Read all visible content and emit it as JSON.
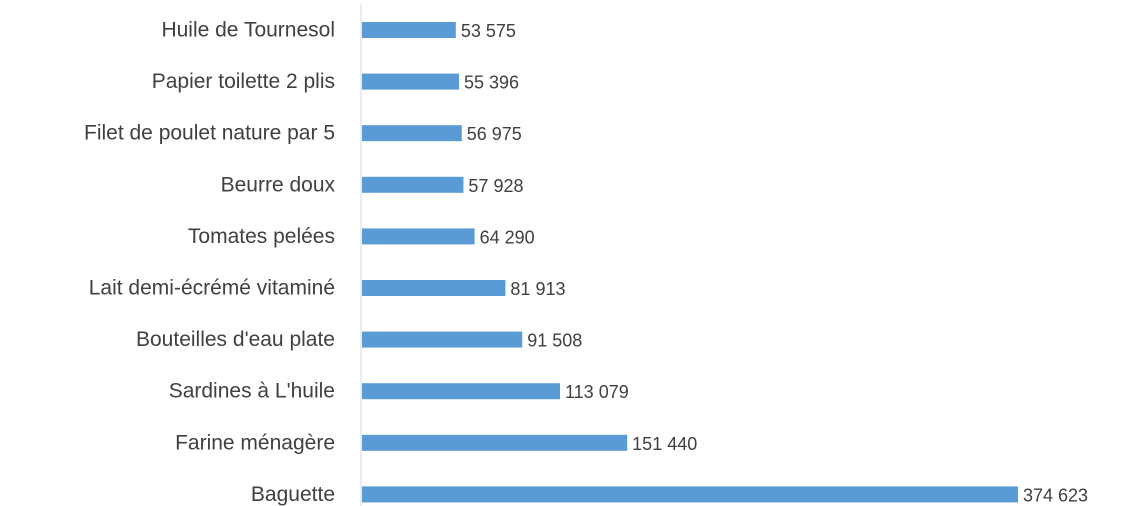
{
  "chart_data": {
    "type": "bar",
    "orientation": "horizontal",
    "categories": [
      "Huile de Tournesol",
      "Papier toilette 2 plis",
      "Filet de poulet nature par 5",
      "Beurre doux",
      "Tomates pelées",
      "Lait demi-écrémé vitaminé",
      "Bouteilles d'eau plate",
      "Sardines à L'huile",
      "Farine ménagère",
      "Baguette"
    ],
    "values": [
      53575,
      55396,
      56975,
      57928,
      64290,
      81913,
      91508,
      113079,
      151440,
      374623
    ],
    "data_labels": [
      "53 575",
      "55 396",
      "56 975",
      "57 928",
      "64 290",
      "81 913",
      "91 508",
      "113 079",
      "151 440",
      "374 623"
    ],
    "title": "",
    "xlabel": "",
    "ylabel": "",
    "xlim": [
      0,
      374623
    ],
    "grid": false,
    "legend": "none",
    "bar_color": "#5b9bd5"
  }
}
